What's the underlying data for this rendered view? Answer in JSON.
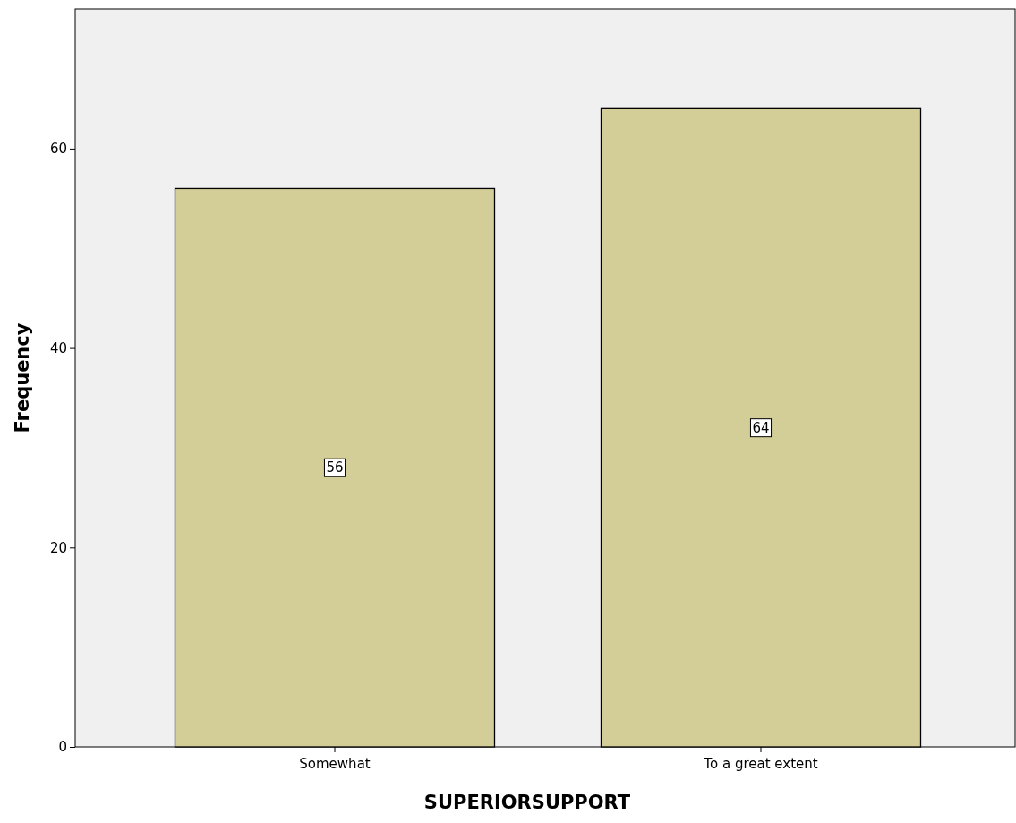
{
  "chart_data": {
    "type": "bar",
    "xlabel": "SUPERIORSUPPORT",
    "ylabel": "Frequency",
    "categories": [
      "Somewhat",
      "To a great extent"
    ],
    "values": [
      56,
      64
    ],
    "color": "#d3ce97",
    "ylim": [
      0,
      74
    ],
    "yticks": [
      0,
      20,
      40,
      60
    ],
    "grid": false,
    "data_labels": true
  }
}
